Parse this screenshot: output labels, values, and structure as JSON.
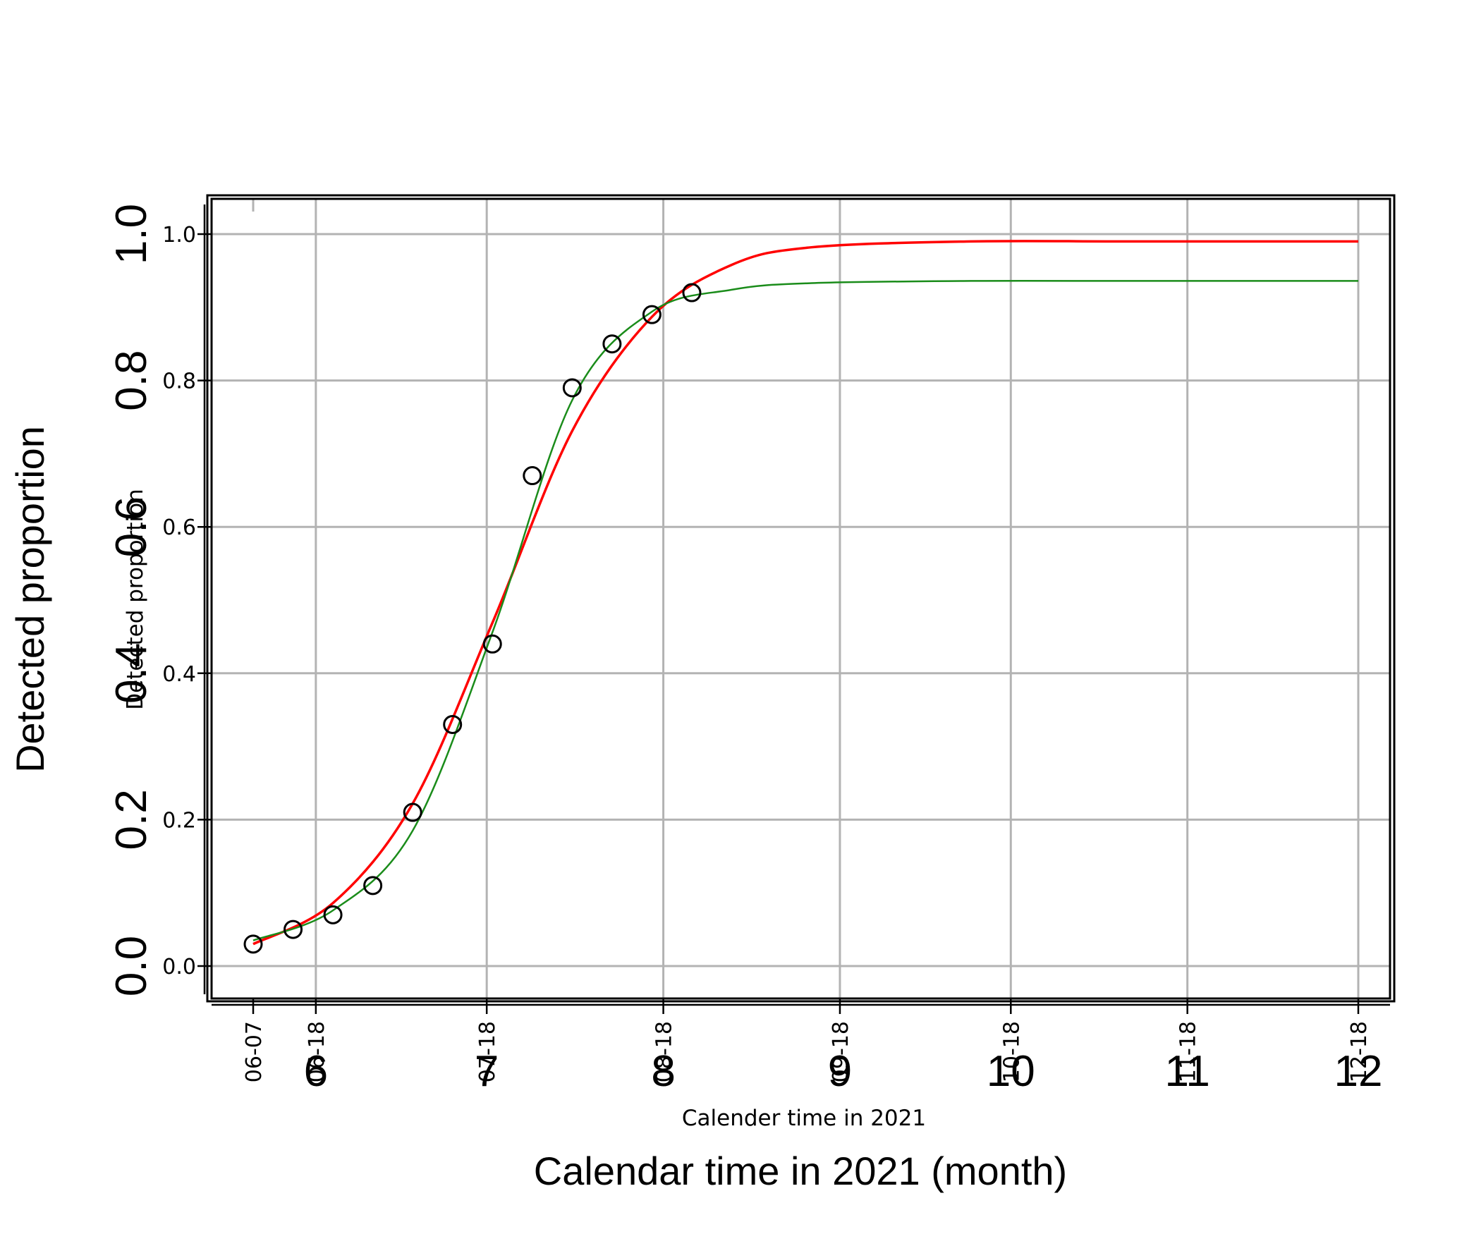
{
  "chart_data": {
    "type": "scatter",
    "xlabel": "Calendar time in 2021 (month)",
    "xlabel_inner": "Calender time in 2021",
    "ylabel": "Detected proportion",
    "ylabel_inner": "Detected proportion",
    "xlim": [
      "2021-06-07",
      "2021-12-18"
    ],
    "ylim": [
      -0.04,
      1.04
    ],
    "grid": true,
    "y_ticks": [
      "0.0",
      "0.2",
      "0.4",
      "0.6",
      "0.8",
      "1.0"
    ],
    "x_ticks_month": [
      "6",
      "7",
      "8",
      "9",
      "10",
      "11",
      "12"
    ],
    "x_ticks_date": [
      "06-07",
      "06-18",
      "07-18",
      "08-18",
      "09-18",
      "10-18",
      "11-18",
      "12-18"
    ],
    "points": {
      "x": [
        "2021-06-07",
        "2021-06-14",
        "2021-06-21",
        "2021-06-28",
        "2021-07-05",
        "2021-07-12",
        "2021-07-19",
        "2021-07-26",
        "2021-08-02",
        "2021-08-09",
        "2021-08-16",
        "2021-08-23"
      ],
      "y": [
        0.03,
        0.05,
        0.07,
        0.11,
        0.21,
        0.33,
        0.44,
        0.67,
        0.79,
        0.85,
        0.89,
        0.92
      ],
      "marker": "open circle",
      "color": "#000000"
    },
    "series": [
      {
        "color": "#ff0000",
        "line": "fitted logistic",
        "x": [
          "2021-06-07",
          "2021-06-21",
          "2021-07-05",
          "2021-07-19",
          "2021-08-02",
          "2021-08-16",
          "2021-08-30",
          "2021-09-13",
          "2021-10-11",
          "2021-11-08",
          "2021-12-18"
        ],
        "y": [
          0.03,
          0.086,
          0.222,
          0.469,
          0.731,
          0.887,
          0.958,
          0.982,
          0.99,
          0.99,
          0.99
        ]
      },
      {
        "color": "#1a8c1a",
        "line": "fitted logistic",
        "x": [
          "2021-06-07",
          "2021-06-21",
          "2021-07-05",
          "2021-07-19",
          "2021-08-02",
          "2021-08-16",
          "2021-08-30",
          "2021-09-13",
          "2021-10-11",
          "2021-11-08",
          "2021-12-18"
        ],
        "y": [
          0.035,
          0.076,
          0.185,
          0.456,
          0.773,
          0.894,
          0.924,
          0.933,
          0.936,
          0.936,
          0.936
        ]
      }
    ]
  }
}
